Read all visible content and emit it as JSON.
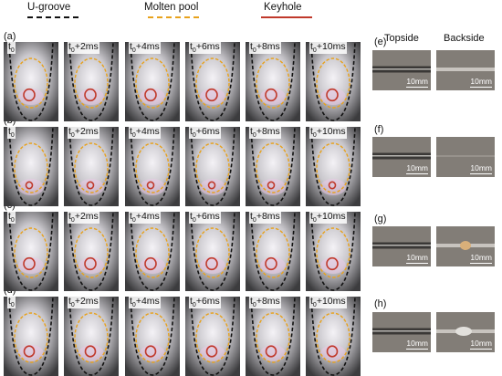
{
  "legend": {
    "items": [
      {
        "label": "U-groove",
        "color": "#111111",
        "style": "dashed"
      },
      {
        "label": "Molten pool",
        "color": "#e8a21c",
        "style": "dashed"
      },
      {
        "label": "Keyhole",
        "color": "#c0392b",
        "style": "solid"
      }
    ]
  },
  "rows": [
    {
      "label": "(a)"
    },
    {
      "label": "(b)"
    },
    {
      "label": "(c)"
    },
    {
      "label": "(d)"
    }
  ],
  "time_labels": [
    {
      "base": "t",
      "sub": "0",
      "suffix": ""
    },
    {
      "base": "t",
      "sub": "0",
      "suffix": "+2ms"
    },
    {
      "base": "t",
      "sub": "0",
      "suffix": "+4ms"
    },
    {
      "base": "t",
      "sub": "0",
      "suffix": "+6ms"
    },
    {
      "base": "t",
      "sub": "0",
      "suffix": "+8ms"
    },
    {
      "base": "t",
      "sub": "0",
      "suffix": "+10ms"
    }
  ],
  "side_panels": {
    "headers": {
      "topside": "Topside",
      "backside": "Backside"
    },
    "items": [
      {
        "label": "(e)",
        "scale": "10mm"
      },
      {
        "label": "(f)",
        "scale": "10mm"
      },
      {
        "label": "(g)",
        "scale": "10mm"
      },
      {
        "label": "(h)",
        "scale": "10mm"
      }
    ]
  },
  "colors": {
    "u_groove": "#111111",
    "molten_pool": "#e8a21c",
    "keyhole": "#c0392b"
  }
}
